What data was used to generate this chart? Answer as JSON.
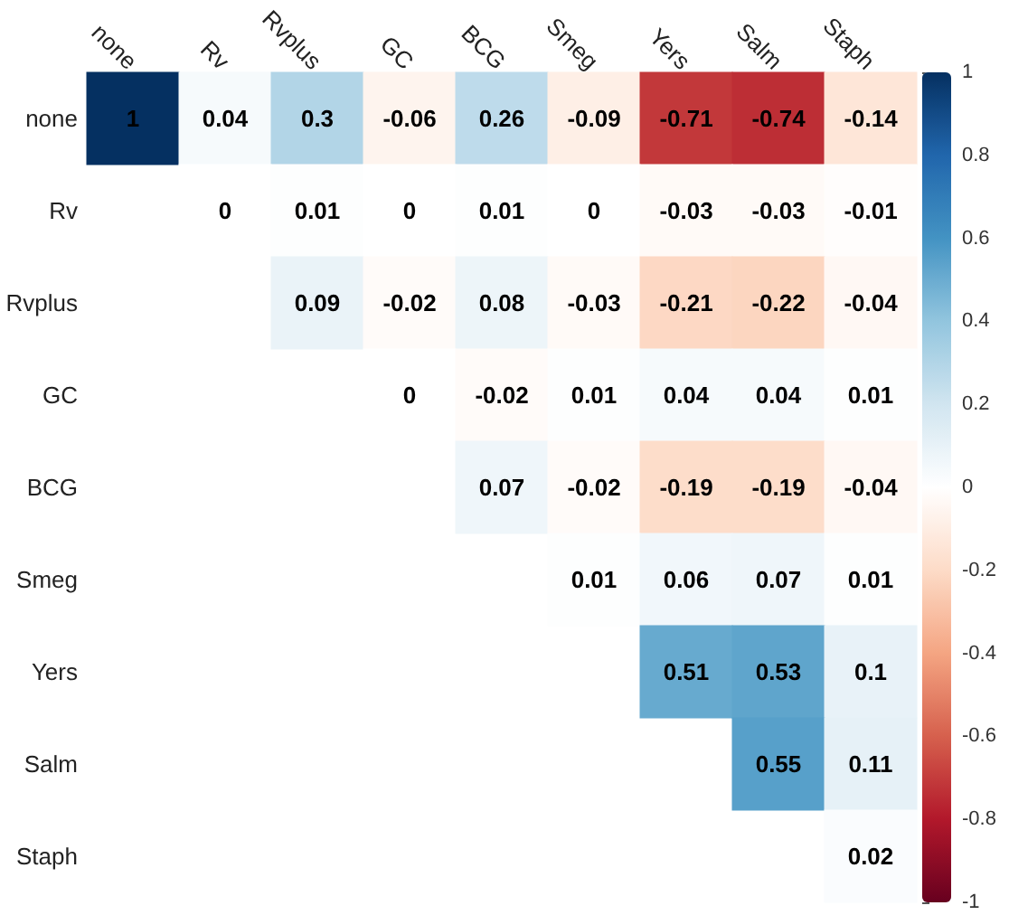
{
  "chart_data": {
    "type": "heatmap",
    "categories": [
      "none",
      "Rv",
      "Rvplus",
      "GC",
      "BCG",
      "Smeg",
      "Yers",
      "Salm",
      "Staph"
    ],
    "y_categories": [
      "none",
      "Rv",
      "Rvplus",
      "GC",
      "BCG",
      "Smeg",
      "Yers",
      "Salm",
      "Staph"
    ],
    "cells": [
      [
        1,
        0.04,
        0.3,
        -0.06,
        0.26,
        -0.09,
        -0.71,
        -0.74,
        -0.14
      ],
      [
        null,
        0,
        0.01,
        0,
        0.01,
        0,
        -0.03,
        -0.03,
        -0.01
      ],
      [
        null,
        null,
        0.09,
        -0.02,
        0.08,
        -0.03,
        -0.21,
        -0.22,
        -0.04
      ],
      [
        null,
        null,
        null,
        0,
        -0.02,
        0.01,
        0.04,
        0.04,
        0.01
      ],
      [
        null,
        null,
        null,
        null,
        0.07,
        -0.02,
        -0.19,
        -0.19,
        -0.04
      ],
      [
        null,
        null,
        null,
        null,
        null,
        0.01,
        0.06,
        0.07,
        0.01
      ],
      [
        null,
        null,
        null,
        null,
        null,
        null,
        0.51,
        0.53,
        0.1
      ],
      [
        null,
        null,
        null,
        null,
        null,
        null,
        null,
        0.55,
        0.11
      ],
      [
        null,
        null,
        null,
        null,
        null,
        null,
        null,
        null,
        0.02
      ]
    ],
    "clim": [
      -1,
      1
    ],
    "cticks": [
      -1,
      -0.8,
      -0.6,
      -0.4,
      -0.2,
      0,
      0.2,
      0.4,
      0.6,
      0.8,
      1
    ],
    "data_labels": true
  }
}
